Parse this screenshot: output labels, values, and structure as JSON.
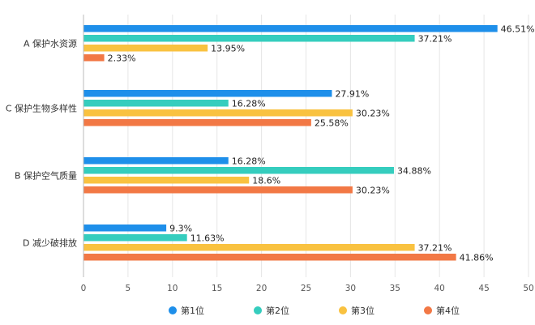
{
  "chart_data": {
    "type": "bar",
    "orientation": "horizontal",
    "categories": [
      "A 保护水资源",
      "C 保护生物多样性",
      "B 保护空气质量",
      "D 减少破排放"
    ],
    "series": [
      {
        "name": "第1位",
        "color": "#1E8FEA",
        "values": [
          46.51,
          27.91,
          16.28,
          9.3
        ],
        "labels": [
          "46.51%",
          "27.91%",
          "16.28%",
          "9.3%"
        ]
      },
      {
        "name": "第2位",
        "color": "#35CDBE",
        "values": [
          37.21,
          16.28,
          34.88,
          11.63
        ],
        "labels": [
          "37.21%",
          "16.28%",
          "34.88%",
          "11.63%"
        ]
      },
      {
        "name": "第3位",
        "color": "#F9C240",
        "values": [
          13.95,
          30.23,
          18.6,
          37.21
        ],
        "labels": [
          "13.95%",
          "30.23%",
          "18.6%",
          "37.21%"
        ]
      },
      {
        "name": "第4位",
        "color": "#F27845",
        "values": [
          2.33,
          25.58,
          30.23,
          41.86
        ],
        "labels": [
          "2.33%",
          "25.58%",
          "30.23%",
          "41.86%"
        ]
      }
    ],
    "xlim": [
      0,
      50
    ],
    "xticks": [
      0,
      5,
      10,
      15,
      20,
      25,
      30,
      35,
      40,
      45,
      50
    ],
    "xtick_labels": [
      "0",
      "5",
      "10",
      "15",
      "20",
      "25",
      "30",
      "35",
      "40",
      "45",
      "50"
    ],
    "grid": true,
    "legend_position": "bottom",
    "title": "",
    "xlabel": "",
    "ylabel": ""
  }
}
